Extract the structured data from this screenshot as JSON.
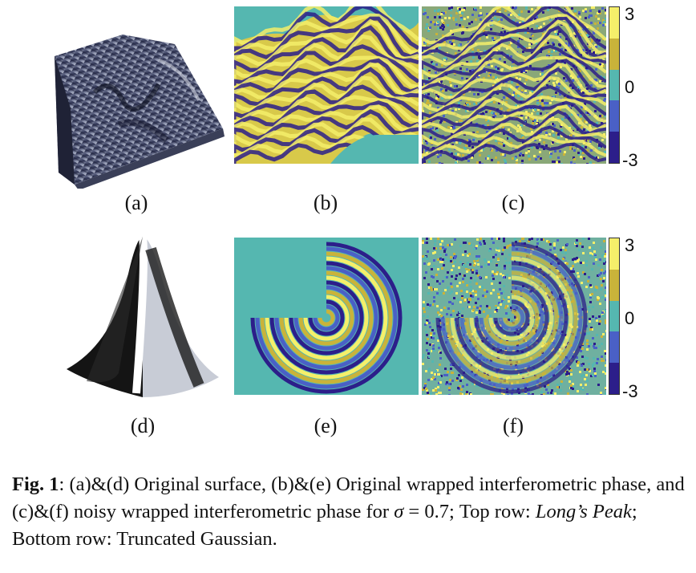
{
  "figure": {
    "panels": {
      "a": {
        "label": "(a)",
        "description": "Long's Peak original surface (3D rendering)"
      },
      "b": {
        "label": "(b)",
        "description": "Long's Peak wrapped phase"
      },
      "c": {
        "label": "(c)",
        "description": "Long's Peak noisy wrapped phase"
      },
      "d": {
        "label": "(d)",
        "description": "Truncated Gaussian original surface (3D)"
      },
      "e": {
        "label": "(e)",
        "description": "Truncated Gaussian wrapped phase"
      },
      "f": {
        "label": "(f)",
        "description": "Truncated Gaussian noisy wrapped phase"
      }
    },
    "colorbar": {
      "ticks": [
        "3",
        "0",
        "-3"
      ],
      "colors": [
        "#f5ef6a",
        "#c9b33a",
        "#55b7b0",
        "#4a60c6",
        "#2c1e8a"
      ]
    }
  },
  "caption": {
    "fig_label": "Fig. 1",
    "sep": ": ",
    "part1": "(a)&(d) Original surface, (b)&(e) Original wrapped interferometric phase, and (c)&(f) noisy wrapped interferometric phase for ",
    "sigma": "σ",
    "part2": " = 0.7; Top row: ",
    "top_row": "Long’s Peak",
    "part3": "; Bottom row: Truncated Gaussian."
  }
}
